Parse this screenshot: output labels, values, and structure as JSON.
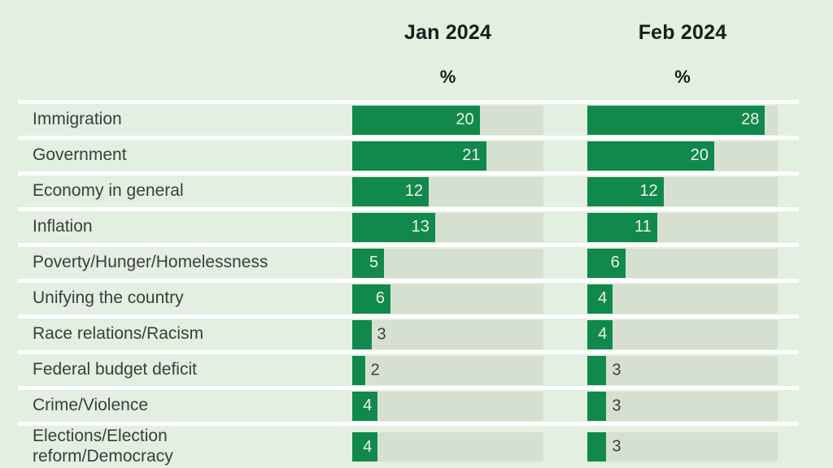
{
  "header": {
    "columns": [
      {
        "label": "Jan 2024",
        "unit": "%"
      },
      {
        "label": "Feb 2024",
        "unit": "%"
      }
    ]
  },
  "chart_data": {
    "type": "bar",
    "orientation": "horizontal",
    "title": "",
    "xlim": [
      0,
      30
    ],
    "grid": false,
    "legend_position": "top-column-headers",
    "categories": [
      "Immigration",
      "Government",
      "Economy in general",
      "Inflation",
      "Poverty/Hunger/Homelessness",
      "Unifying the country",
      "Race relations/Racism",
      "Federal budget deficit",
      "Crime/Violence",
      "Elections/Election\nreform/Democracy"
    ],
    "series": [
      {
        "name": "Jan 2024",
        "values": [
          20,
          21,
          12,
          13,
          5,
          6,
          3,
          2,
          4,
          4
        ]
      },
      {
        "name": "Feb 2024",
        "values": [
          28,
          20,
          12,
          11,
          6,
          4,
          4,
          3,
          3,
          3
        ]
      }
    ],
    "value_label_inside_min": 4,
    "colors": {
      "bar": "#11894c",
      "track": "#d6e0d1",
      "background": "#e2efe1",
      "separator": "#ffffff",
      "value_inside": "#edf3ec",
      "value_outside": "#3d3d3d",
      "label": "#3d3d3d",
      "header": "#1c1c1c"
    }
  }
}
